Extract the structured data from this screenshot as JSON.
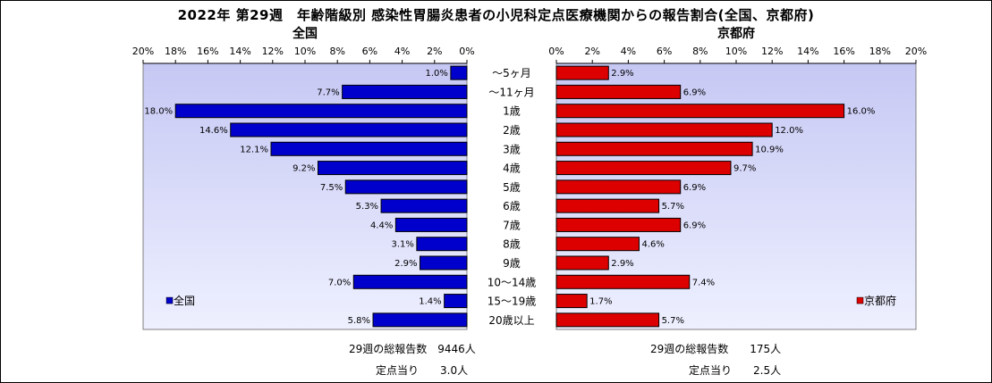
{
  "chart_data": {
    "type": "bar",
    "title": "2022年 第29週　年齢階級別 感染性胃腸炎患者の小児科定点医療機関からの報告割合(全国、京都府)",
    "categories": [
      "～5ヶ月",
      "～11ヶ月",
      "1歳",
      "2歳",
      "3歳",
      "4歳",
      "5歳",
      "6歳",
      "7歳",
      "8歳",
      "9歳",
      "10～14歳",
      "15～19歳",
      "20歳以上"
    ],
    "xlim": [
      0,
      20
    ],
    "x_tick_labels": [
      "0%",
      "2%",
      "4%",
      "6%",
      "8%",
      "10%",
      "12%",
      "14%",
      "16%",
      "18%",
      "20%"
    ],
    "series": [
      {
        "name": "全国",
        "panel_title": "全国",
        "color": "#0000CC",
        "values": [
          1.0,
          7.7,
          18.0,
          14.6,
          12.1,
          9.2,
          7.5,
          5.3,
          4.4,
          3.1,
          2.9,
          7.0,
          1.4,
          5.8
        ],
        "labels": [
          "1.0%",
          "7.7%",
          "18.0%",
          "14.6%",
          "12.1%",
          "9.2%",
          "7.5%",
          "5.3%",
          "4.4%",
          "3.1%",
          "2.9%",
          "7.0%",
          "1.4%",
          "5.8%"
        ]
      },
      {
        "name": "京都府",
        "panel_title": "京都府",
        "color": "#DD0000",
        "values": [
          2.9,
          6.9,
          16.0,
          12.0,
          10.9,
          9.7,
          6.9,
          5.7,
          6.9,
          4.6,
          2.9,
          7.4,
          1.7,
          5.7
        ],
        "labels": [
          "2.9%",
          "6.9%",
          "16.0%",
          "12.0%",
          "10.9%",
          "9.7%",
          "6.9%",
          "5.7%",
          "6.9%",
          "4.6%",
          "2.9%",
          "7.4%",
          "1.7%",
          "5.7%"
        ]
      }
    ]
  },
  "footer": {
    "national_total": "29週の総報告数　9446人",
    "national_per_point": "定点当り　　3.0人",
    "kyoto_total": "29週の総報告数　　175人",
    "kyoto_per_point": "定点当り　　2.5人"
  }
}
